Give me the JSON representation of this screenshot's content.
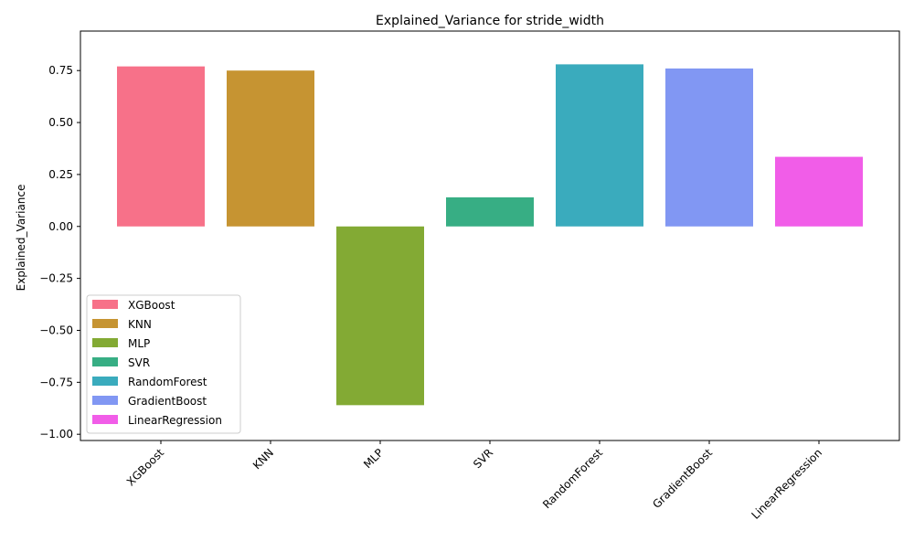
{
  "chart_data": {
    "type": "bar",
    "title": "Explained_Variance for stride_width",
    "xlabel": "",
    "ylabel": "Explained_Variance",
    "categories": [
      "XGBoost",
      "KNN",
      "MLP",
      "SVR",
      "RandomForest",
      "GradientBoost",
      "LinearRegression"
    ],
    "values": [
      0.77,
      0.75,
      -0.86,
      0.14,
      0.78,
      0.76,
      0.335
    ],
    "colors": [
      "#f77189",
      "#c69432",
      "#83aa34",
      "#37ae84",
      "#3aabbd",
      "#8197f3",
      "#f15de8"
    ],
    "ylim": [
      -1.03,
      0.94
    ],
    "yticks": [
      0.75,
      0.5,
      0.25,
      0.0,
      -0.25,
      -0.5,
      -0.75,
      -1.0
    ],
    "ytick_labels": [
      "0.75",
      "0.50",
      "0.25",
      "0.00",
      "−0.25",
      "−0.50",
      "−0.75",
      "−1.00"
    ],
    "grid": false,
    "legend": {
      "placement": "lower-left",
      "entries": [
        "XGBoost",
        "KNN",
        "MLP",
        "SVR",
        "RandomForest",
        "GradientBoost",
        "LinearRegression"
      ]
    }
  }
}
